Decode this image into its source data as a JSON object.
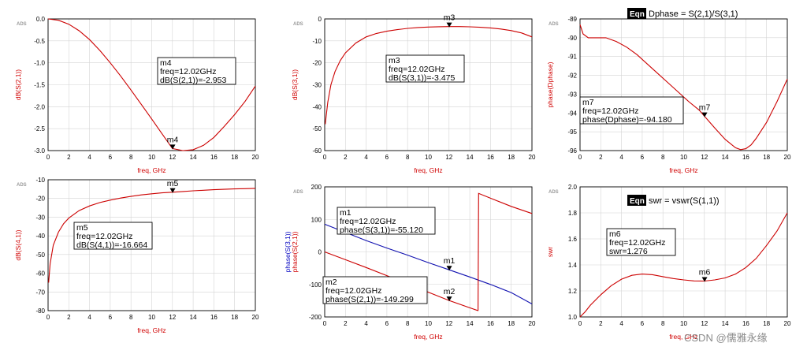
{
  "watermark": "CSDN @儒雅永缘",
  "colors": {
    "red": "#cc0000",
    "blue": "#1010b0",
    "grid": "#cfcfcf",
    "text": "#000000"
  },
  "chart_data": [
    {
      "id": "p1",
      "type": "line",
      "title": "",
      "ads": "ADS",
      "xlabel": "freq, GHz",
      "ylabel": "dB(S(2,1))",
      "xlim": [
        0,
        20
      ],
      "ylim": [
        -3.0,
        0.0
      ],
      "xticks": [
        0,
        2,
        4,
        6,
        8,
        10,
        12,
        14,
        16,
        18,
        20
      ],
      "yticks": [
        0.0,
        -0.5,
        -1.0,
        -1.5,
        -2.0,
        -2.5,
        -3.0
      ],
      "ytick_labels": [
        "0.0",
        "-0.5",
        "-1.0",
        "-1.5",
        "-2.0",
        "-2.5",
        "-3.0"
      ],
      "series": [
        {
          "name": "dB(S(2,1))",
          "color": "#cc0000",
          "x": [
            0,
            1,
            2,
            3,
            4,
            5,
            6,
            7,
            8,
            9,
            10,
            11,
            12,
            13,
            14,
            15,
            16,
            17,
            18,
            19,
            20
          ],
          "y": [
            0,
            -0.03,
            -0.12,
            -0.27,
            -0.47,
            -0.72,
            -1.0,
            -1.3,
            -1.62,
            -1.95,
            -2.28,
            -2.62,
            -2.953,
            -3.0,
            -2.98,
            -2.88,
            -2.7,
            -2.45,
            -2.18,
            -1.88,
            -1.53
          ]
        }
      ],
      "marker": {
        "name": "m4",
        "x": 12.02,
        "y": -2.953
      },
      "marker_box": [
        "m4",
        "freq=12.02GHz",
        "dB(S(2,1))=-2.953"
      ]
    },
    {
      "id": "p2",
      "type": "line",
      "title": "",
      "ads": "ADS",
      "xlabel": "freq, GHz",
      "ylabel": "dB(S(3,1))",
      "xlim": [
        0,
        20
      ],
      "ylim": [
        -60,
        0
      ],
      "xticks": [
        0,
        2,
        4,
        6,
        8,
        10,
        12,
        14,
        16,
        18,
        20
      ],
      "yticks": [
        0,
        -10,
        -20,
        -30,
        -40,
        -50,
        -60
      ],
      "ytick_labels": [
        "0",
        "-10",
        "-20",
        "-30",
        "-40",
        "-50",
        "-60"
      ],
      "series": [
        {
          "name": "dB(S(3,1))",
          "color": "#cc0000",
          "x": [
            0.05,
            0.3,
            0.6,
            1,
            1.5,
            2,
            3,
            4,
            5,
            6,
            7,
            8,
            9,
            10,
            11,
            12,
            13,
            14,
            15,
            16,
            17,
            18,
            19,
            20
          ],
          "y": [
            -48,
            -38,
            -30,
            -24,
            -19,
            -15.5,
            -11,
            -8.2,
            -6.6,
            -5.6,
            -4.9,
            -4.3,
            -3.9,
            -3.7,
            -3.55,
            -3.475,
            -3.5,
            -3.6,
            -3.8,
            -4.1,
            -4.6,
            -5.3,
            -6.4,
            -8.2
          ]
        }
      ],
      "marker": {
        "name": "m3",
        "x": 12.02,
        "y": -3.475
      },
      "marker_box": [
        "m3",
        "freq=12.02GHz",
        "dB(S(3,1))=-3.475"
      ]
    },
    {
      "id": "p3",
      "type": "line",
      "title": "",
      "ads": "ADS",
      "eqn_label": "Eqn",
      "equation": "Dphase = S(2,1)/S(3,1)",
      "xlabel": "freq, GHz",
      "ylabel": "phase(Dphase)",
      "xlim": [
        0,
        20
      ],
      "ylim": [
        -96,
        -89
      ],
      "xticks": [
        0,
        2,
        4,
        6,
        8,
        10,
        12,
        14,
        16,
        18,
        20
      ],
      "yticks": [
        -89,
        -90,
        -91,
        -92,
        -93,
        -94,
        -95,
        -96
      ],
      "ytick_labels": [
        "-89",
        "-90",
        "-91",
        "-92",
        "-93",
        "-94",
        "-95",
        "-96"
      ],
      "series": [
        {
          "name": "phase(Dphase)",
          "color": "#cc0000",
          "x": [
            0,
            0.3,
            0.8,
            1.5,
            2.5,
            3.5,
            4.5,
            5.5,
            6.5,
            7.5,
            8.5,
            9.5,
            10.5,
            11.5,
            12.02,
            13,
            14,
            15,
            15.5,
            16,
            16.5,
            17,
            18,
            19,
            20
          ],
          "y": [
            -89.3,
            -89.8,
            -90.0,
            -90.0,
            -90.0,
            -90.2,
            -90.5,
            -90.9,
            -91.4,
            -91.9,
            -92.4,
            -92.9,
            -93.4,
            -93.85,
            -94.18,
            -94.8,
            -95.4,
            -95.85,
            -95.95,
            -95.9,
            -95.7,
            -95.35,
            -94.5,
            -93.4,
            -92.2
          ]
        }
      ],
      "marker": {
        "name": "m7",
        "x": 12.02,
        "y": -94.18
      },
      "marker_box": [
        "m7",
        "freq=12.02GHz",
        "phase(Dphase)=-94.180"
      ]
    },
    {
      "id": "p4",
      "type": "line",
      "title": "",
      "ads": "ADS",
      "xlabel": "freq, GHz",
      "ylabel": "dB(S(4,1))",
      "xlim": [
        0,
        20
      ],
      "ylim": [
        -80,
        -10
      ],
      "xticks": [
        0,
        2,
        4,
        6,
        8,
        10,
        12,
        14,
        16,
        18,
        20
      ],
      "yticks": [
        -10,
        -20,
        -30,
        -40,
        -50,
        -60,
        -70,
        -80
      ],
      "ytick_labels": [
        "-10",
        "-20",
        "-30",
        "-40",
        "-50",
        "-60",
        "-70",
        "-80"
      ],
      "series": [
        {
          "name": "dB(S(4,1))",
          "color": "#cc0000",
          "x": [
            0.05,
            0.2,
            0.5,
            1,
            1.5,
            2,
            3,
            4,
            5,
            6,
            7,
            8,
            9,
            10,
            11,
            12,
            13,
            14,
            15,
            16,
            17,
            18,
            19,
            20
          ],
          "y": [
            -65,
            -55,
            -45,
            -38,
            -33.5,
            -30.5,
            -26.5,
            -24,
            -22.2,
            -20.9,
            -19.8,
            -18.9,
            -18.1,
            -17.5,
            -17.0,
            -16.664,
            -16.3,
            -15.9,
            -15.6,
            -15.3,
            -15.1,
            -14.9,
            -14.75,
            -14.6
          ]
        }
      ],
      "marker": {
        "name": "m5",
        "x": 12.02,
        "y": -16.664
      },
      "marker_box": [
        "m5",
        "freq=12.02GHz",
        "dB(S(4,1))=-16.664"
      ]
    },
    {
      "id": "p5",
      "type": "line",
      "title": "",
      "ads": "ADS",
      "xlabel": "freq, GHz",
      "ylabel": "phase(S(2,1))",
      "ylabel2": "phase(S(3,1))",
      "xlim": [
        0,
        20
      ],
      "ylim": [
        -200,
        200
      ],
      "xticks": [
        0,
        2,
        4,
        6,
        8,
        10,
        12,
        14,
        16,
        18,
        20
      ],
      "yticks": [
        200,
        100,
        0,
        -100,
        -200
      ],
      "ytick_labels": [
        "200",
        "100",
        "0",
        "-100",
        "-200"
      ],
      "series": [
        {
          "name": "phase(S(3,1))",
          "color": "#1010b0",
          "x": [
            0,
            2,
            4,
            6,
            8,
            10,
            12,
            14,
            16,
            18,
            20
          ],
          "y": [
            85,
            60,
            35,
            12,
            -10,
            -33,
            -55.12,
            -77,
            -100,
            -125,
            -160
          ]
        },
        {
          "name": "phase(S(2,1))",
          "color": "#cc0000",
          "x": [
            0,
            2,
            4,
            6,
            8,
            10,
            12,
            14,
            14.75,
            14.8,
            14.85,
            16,
            18,
            20
          ],
          "y": [
            0,
            -24,
            -48,
            -73,
            -98,
            -124,
            -149.299,
            -172,
            -180,
            -180,
            180,
            165,
            140,
            118
          ]
        }
      ],
      "markers": [
        {
          "name": "m1",
          "x": 12.02,
          "y": -55.12
        },
        {
          "name": "m2",
          "x": 12.02,
          "y": -149.299
        }
      ],
      "marker_boxes": [
        [
          "m1",
          "freq=12.02GHz",
          "phase(S(3,1))=-55.120"
        ],
        [
          "m2",
          "freq=12.02GHz",
          "phase(S(2,1))=-149.299"
        ]
      ]
    },
    {
      "id": "p6",
      "type": "line",
      "title": "",
      "ads": "ADS",
      "eqn_label": "Eqn",
      "equation": "swr = vswr(S(1,1))",
      "xlabel": "freq, GHz",
      "ylabel": "swr",
      "xlim": [
        0,
        20
      ],
      "ylim": [
        1.0,
        2.0
      ],
      "xticks": [
        0,
        2,
        4,
        6,
        8,
        10,
        12,
        14,
        16,
        18,
        20
      ],
      "yticks": [
        2.0,
        1.8,
        1.6,
        1.4,
        1.2,
        1.0
      ],
      "ytick_labels": [
        "2.0",
        "1.8",
        "1.6",
        "1.4",
        "1.2",
        "1.0"
      ],
      "series": [
        {
          "name": "swr",
          "color": "#cc0000",
          "x": [
            0,
            0.5,
            1,
            2,
            3,
            4,
            5,
            6,
            7,
            8,
            9,
            10,
            11,
            12,
            13,
            14,
            15,
            16,
            17,
            18,
            19,
            20
          ],
          "y": [
            1.0,
            1.04,
            1.09,
            1.17,
            1.24,
            1.29,
            1.32,
            1.33,
            1.325,
            1.31,
            1.295,
            1.285,
            1.277,
            1.276,
            1.285,
            1.3,
            1.33,
            1.38,
            1.45,
            1.55,
            1.66,
            1.8
          ]
        }
      ],
      "marker": {
        "name": "m6",
        "x": 12.02,
        "y": 1.276
      },
      "marker_box": [
        "m6",
        "freq=12.02GHz",
        "swr=1.276"
      ]
    }
  ]
}
